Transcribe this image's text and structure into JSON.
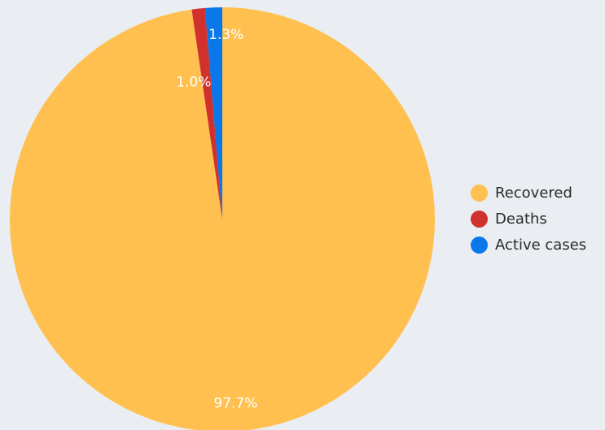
{
  "chart_data": {
    "type": "pie",
    "title": "",
    "slices": [
      {
        "label": "Recovered",
        "value": 97.7,
        "display": "97.7%",
        "color": "#ffc04f"
      },
      {
        "label": "Deaths",
        "value": 1.0,
        "display": "1.0%",
        "color": "#d0312d"
      },
      {
        "label": "Active cases",
        "value": 1.3,
        "display": "1.3%",
        "color": "#0a77ea"
      }
    ],
    "legend": {
      "position": "right",
      "items": [
        {
          "label": "Recovered",
          "color": "#ffc04f"
        },
        {
          "label": "Deaths",
          "color": "#d0312d"
        },
        {
          "label": "Active cases",
          "color": "#0a77ea"
        }
      ]
    }
  }
}
